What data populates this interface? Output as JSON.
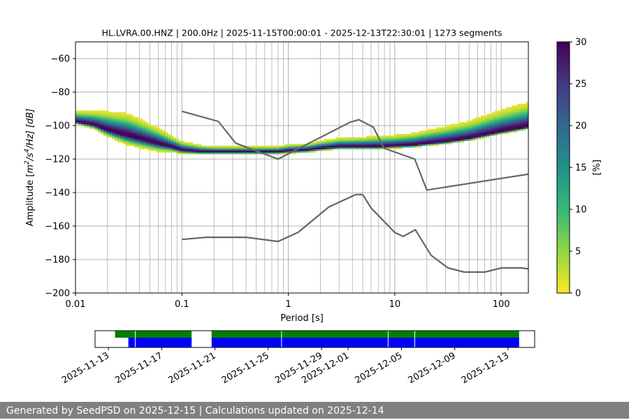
{
  "footer": "Generated by SeedPSD on 2025-12-15 | Calculations updated on 2025-12-14",
  "colors": {
    "model_lines": "#666666",
    "available": "#008000",
    "gaps": "#0000ff",
    "data_row": "#0000ff"
  },
  "chart_data": [
    {
      "type": "heatmap",
      "title": "HL.LVRA.00.HNZ | 200.0Hz | 2025-11-15T00:00:01 - 2025-12-13T22:30:01 | 1273 segments",
      "xlabel": "Period [s]",
      "ylabel_main": "Amplitude [",
      "ylabel_unit": "m",
      "ylabel_sup1": "2",
      "ylabel_mid": "/s",
      "ylabel_sup2": "4",
      "ylabel_end": "/Hz] [dB]",
      "xscale": "log",
      "xlim": [
        0.01,
        180
      ],
      "ylim": [
        -200,
        -50
      ],
      "xticks": [
        {
          "value": 0.01,
          "label": "0.01"
        },
        {
          "value": 0.1,
          "label": "0.1"
        },
        {
          "value": 1,
          "label": "1"
        },
        {
          "value": 10,
          "label": "10"
        },
        {
          "value": 100,
          "label": "100"
        }
      ],
      "yticks": [
        {
          "value": -60,
          "label": "−60"
        },
        {
          "value": -80,
          "label": "−80"
        },
        {
          "value": -100,
          "label": "−100"
        },
        {
          "value": -120,
          "label": "−120"
        },
        {
          "value": -140,
          "label": "−140"
        },
        {
          "value": -160,
          "label": "−160"
        },
        {
          "value": -180,
          "label": "−180"
        },
        {
          "value": -200,
          "label": "−200"
        }
      ],
      "grid": true,
      "colorbar": {
        "label": "[%]",
        "min": 0,
        "max": 30,
        "colormap": "viridis_r",
        "ticks": [
          {
            "value": 0,
            "label": "0"
          },
          {
            "value": 5,
            "label": "5"
          },
          {
            "value": 10,
            "label": "10"
          },
          {
            "value": 15,
            "label": "15"
          },
          {
            "value": 20,
            "label": "20"
          },
          {
            "value": 25,
            "label": "25"
          },
          {
            "value": 30,
            "label": "30"
          }
        ]
      },
      "density_ridge": {
        "x": [
          0.01,
          0.015,
          0.02,
          0.03,
          0.04,
          0.06,
          0.08,
          0.1,
          0.15,
          0.2,
          0.3,
          0.5,
          0.8,
          1,
          1.5,
          2,
          3,
          5,
          7,
          10,
          15,
          20,
          30,
          50,
          70,
          100,
          150,
          180
        ],
        "y": [
          -98,
          -100,
          -103,
          -106,
          -108,
          -111,
          -113,
          -115,
          -116,
          -116,
          -116,
          -116,
          -116,
          -115.5,
          -115,
          -114,
          -113,
          -113,
          -113,
          -112.5,
          -112,
          -111,
          -110,
          -108,
          -106,
          -104,
          -102,
          -101
        ],
        "spread_low": [
          2,
          3,
          5,
          7,
          7,
          6,
          4,
          3,
          2,
          2,
          2,
          2,
          2,
          2,
          2,
          2,
          2,
          2,
          2,
          2,
          2,
          2,
          2,
          2,
          2,
          2,
          2,
          2
        ],
        "spread_high": [
          10,
          13,
          17,
          20,
          18,
          14,
          10,
          8,
          6,
          5,
          5,
          5,
          5,
          6,
          6,
          7,
          8,
          9,
          10,
          10,
          11,
          12,
          14,
          16,
          18,
          20,
          22,
          22
        ]
      },
      "series": [
        {
          "x": [
            0.1,
            0.22,
            0.32,
            0.8,
            3.8,
            4.6,
            6.3,
            7.9,
            15.4,
            20,
            180
          ],
          "y": [
            -91.5,
            -97.5,
            -110.5,
            -120,
            -98,
            -96.5,
            -101,
            -113.5,
            -120,
            -138.5,
            -129
          ]
        },
        {
          "x": [
            0.1,
            0.17,
            0.4,
            0.8,
            1.24,
            2.4,
            4.3,
            5.0,
            6.0,
            10,
            12,
            15.6,
            21.9,
            31.6,
            45,
            70,
            101,
            154,
            180
          ],
          "y": [
            -168,
            -166.7,
            -166.7,
            -169.2,
            -163.7,
            -148.6,
            -141.2,
            -141.2,
            -149.3,
            -163.8,
            -166.2,
            -162.2,
            -177.4,
            -185,
            -187.5,
            -187.5,
            -185,
            -185,
            -185.6
          ]
        }
      ]
    },
    {
      "type": "bar",
      "orientation": "horizontal",
      "xlim": [
        "2025-11-12",
        "2025-12-15"
      ],
      "xticks": [
        "2025-11-13",
        "2025-11-17",
        "2025-11-21",
        "2025-11-25",
        "2025-11-29",
        "2025-12-01",
        "2025-12-05",
        "2025-12-09",
        "2025-12-13"
      ],
      "top_row": [
        {
          "start": "2025-11-13T12:00",
          "end": "2025-11-19T06:00"
        },
        {
          "start": "2025-11-20T18:00",
          "end": "2025-12-13T20:00"
        }
      ],
      "bottom_row": [
        {
          "start": "2025-11-14T12:00",
          "end": "2025-11-19T06:00"
        },
        {
          "start": "2025-11-20T18:00",
          "end": "2025-12-13T20:00"
        }
      ],
      "gap_marks": [
        "2025-11-15T00:30",
        "2025-11-26T00:00",
        "2025-12-04T00:00",
        "2025-12-06T00:00"
      ]
    }
  ]
}
